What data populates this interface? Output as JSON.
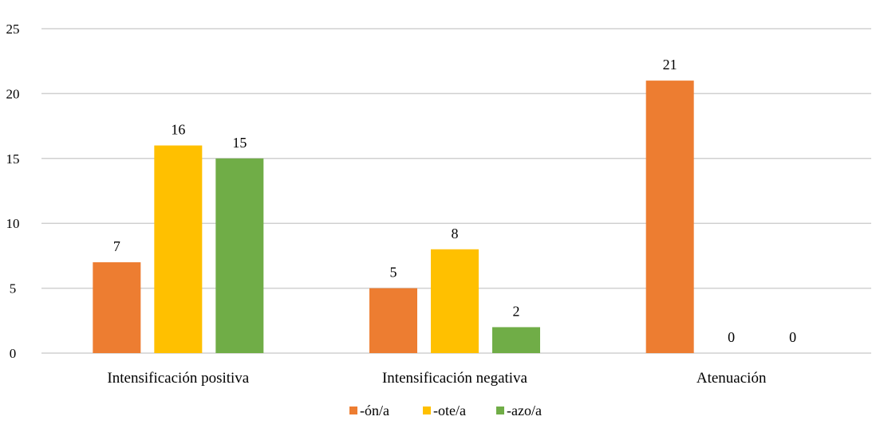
{
  "chart_data": {
    "type": "bar",
    "title": "",
    "xlabel": "",
    "ylabel": "",
    "ylim": [
      0,
      25
    ],
    "yticks": [
      0,
      5,
      10,
      15,
      20,
      25
    ],
    "grid": true,
    "legend_position": "bottom",
    "categories": [
      "Intensificación positiva",
      "Intensificación negativa",
      "Atenuación"
    ],
    "series": [
      {
        "name": "-ón/a",
        "color": "#ED7D31",
        "values": [
          7,
          5,
          21
        ]
      },
      {
        "name": "-ote/a",
        "color": "#FFC000",
        "values": [
          16,
          8,
          0
        ]
      },
      {
        "name": "-azo/a",
        "color": "#70AD47",
        "values": [
          15,
          2,
          0
        ]
      }
    ]
  }
}
